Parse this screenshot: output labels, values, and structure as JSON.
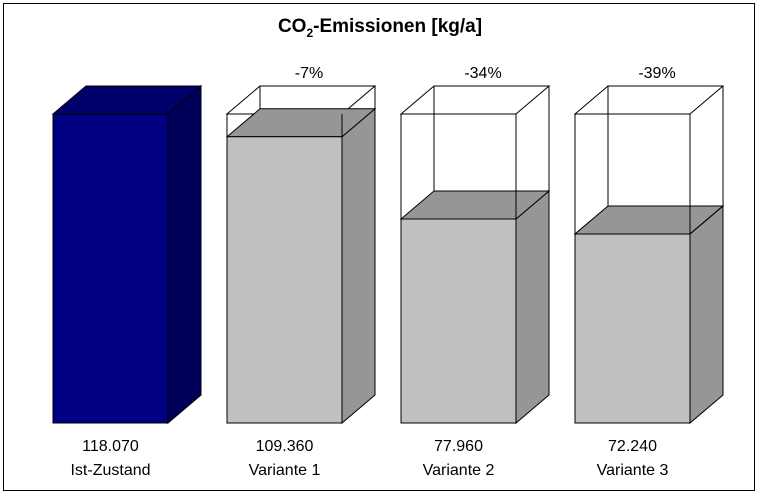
{
  "chart_data": {
    "type": "bar",
    "title": {
      "main": "CO",
      "sub": "2",
      "rest": "-Emissionen  [kg/a]"
    },
    "categories": [
      "Ist-Zustand",
      "Variante 1",
      "Variante 2",
      "Variante 3"
    ],
    "values": [
      118070,
      109360,
      77960,
      72240
    ],
    "value_labels": [
      "118.070",
      "109.360",
      "77.960",
      "72.240"
    ],
    "change_labels": [
      "",
      "-7%",
      "-34%",
      "-39%"
    ],
    "baseline_index": 0,
    "colors": {
      "baseline_front": "#000080",
      "baseline_top": "#00006a",
      "baseline_side": "#00005a",
      "bar_front": "#c0c0c0",
      "bar_top": "#969696",
      "bar_side": "#969696",
      "outline": "#000000"
    },
    "grid": false,
    "legend": "none"
  }
}
